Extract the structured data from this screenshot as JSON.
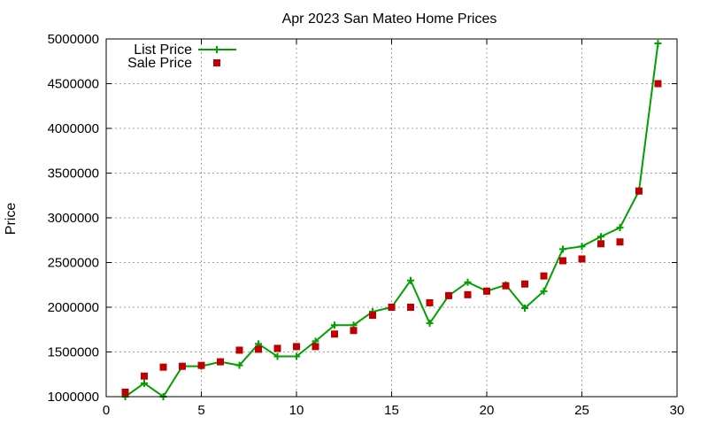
{
  "chart_data": {
    "type": "line",
    "title": "Apr 2023 San Mateo Home Prices",
    "ylabel": "Price",
    "xlabel": "",
    "xlim": [
      0,
      30
    ],
    "ylim": [
      1000000,
      5000000
    ],
    "x_ticks": [
      0,
      5,
      10,
      15,
      20,
      25,
      30
    ],
    "y_ticks": [
      1000000,
      1500000,
      2000000,
      2500000,
      3000000,
      3500000,
      4000000,
      4500000,
      5000000
    ],
    "grid": true,
    "legend_position": "top-left",
    "series": [
      {
        "name": "List Price",
        "kind": "line-with-plus-markers",
        "color": "#00a000",
        "x": [
          1,
          2,
          3,
          4,
          5,
          6,
          7,
          8,
          9,
          10,
          11,
          12,
          13,
          14,
          15,
          16,
          17,
          18,
          19,
          20,
          21,
          22,
          23,
          24,
          25,
          26,
          27,
          28,
          29
        ],
        "values": [
          1000000,
          1150000,
          1000000,
          1340000,
          1340000,
          1390000,
          1350000,
          1590000,
          1450000,
          1450000,
          1620000,
          1800000,
          1800000,
          1950000,
          2000000,
          2300000,
          1820000,
          2130000,
          2280000,
          2180000,
          2250000,
          1990000,
          2180000,
          2650000,
          2680000,
          2790000,
          2890000,
          3300000,
          4950000
        ]
      },
      {
        "name": "Sale Price",
        "kind": "square-markers",
        "color": "#c00000",
        "x": [
          1,
          2,
          3,
          4,
          5,
          6,
          7,
          8,
          9,
          10,
          11,
          12,
          13,
          14,
          15,
          16,
          17,
          18,
          19,
          20,
          21,
          22,
          23,
          24,
          25,
          26,
          27,
          28,
          29
        ],
        "values": [
          1050000,
          1230000,
          1330000,
          1340000,
          1350000,
          1390000,
          1520000,
          1530000,
          1540000,
          1560000,
          1560000,
          1700000,
          1740000,
          1910000,
          2000000,
          2000000,
          2050000,
          2130000,
          2140000,
          2180000,
          2240000,
          2260000,
          2350000,
          2520000,
          2540000,
          2710000,
          2730000,
          3300000,
          4500000
        ]
      }
    ]
  }
}
